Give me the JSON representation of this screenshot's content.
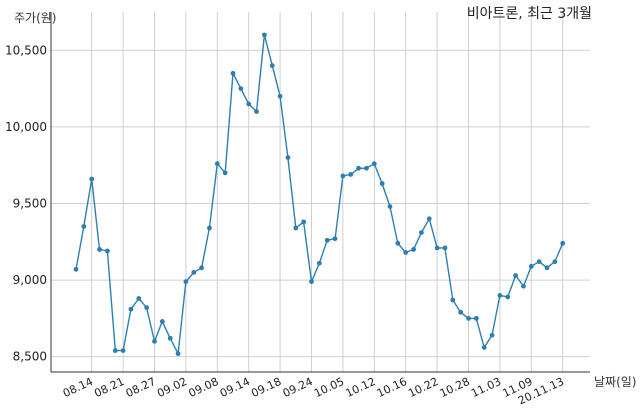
{
  "chart_data": {
    "type": "line",
    "title": "비아트론, 최근 3개월",
    "ylabel": "주가(원)",
    "xlabel": "날짜(일)",
    "ylim": [
      8400,
      10750
    ],
    "yticks": [
      8500,
      9000,
      9500,
      10000,
      10500
    ],
    "ytick_labels": [
      "8,500",
      "9,000",
      "9,500",
      "10,000",
      "10,500"
    ],
    "xtick_labels": [
      {
        "label": "08.14",
        "index": 2
      },
      {
        "label": "08.21",
        "index": 6
      },
      {
        "label": "08.27",
        "index": 10
      },
      {
        "label": "09.02",
        "index": 14
      },
      {
        "label": "09.08",
        "index": 18
      },
      {
        "label": "09.14",
        "index": 22
      },
      {
        "label": "09.18",
        "index": 26
      },
      {
        "label": "09.24",
        "index": 30
      },
      {
        "label": "10.05",
        "index": 34
      },
      {
        "label": "10.12",
        "index": 38
      },
      {
        "label": "10.16",
        "index": 42
      },
      {
        "label": "10.22",
        "index": 46
      },
      {
        "label": "10.28",
        "index": 50
      },
      {
        "label": "11.03",
        "index": 54
      },
      {
        "label": "11.09",
        "index": 58
      },
      {
        "label": "20.11.13",
        "index": 62
      }
    ],
    "grid": true,
    "color": "#2e7fb0",
    "values": [
      9070,
      9350,
      9660,
      9200,
      9190,
      8540,
      8540,
      8810,
      8880,
      8820,
      8600,
      8730,
      8620,
      8520,
      8990,
      9050,
      9080,
      9340,
      9760,
      9700,
      10350,
      10250,
      10150,
      10100,
      10600,
      10400,
      10200,
      9800,
      9340,
      9380,
      8990,
      9110,
      9260,
      9270,
      9680,
      9690,
      9730,
      9730,
      9760,
      9630,
      9480,
      9240,
      9180,
      9200,
      9310,
      9400,
      9210,
      9210,
      8870,
      8790,
      8750,
      8750,
      8560,
      8640,
      8900,
      8890,
      9030,
      8960,
      9090,
      9120,
      9080,
      9120,
      9240
    ]
  }
}
